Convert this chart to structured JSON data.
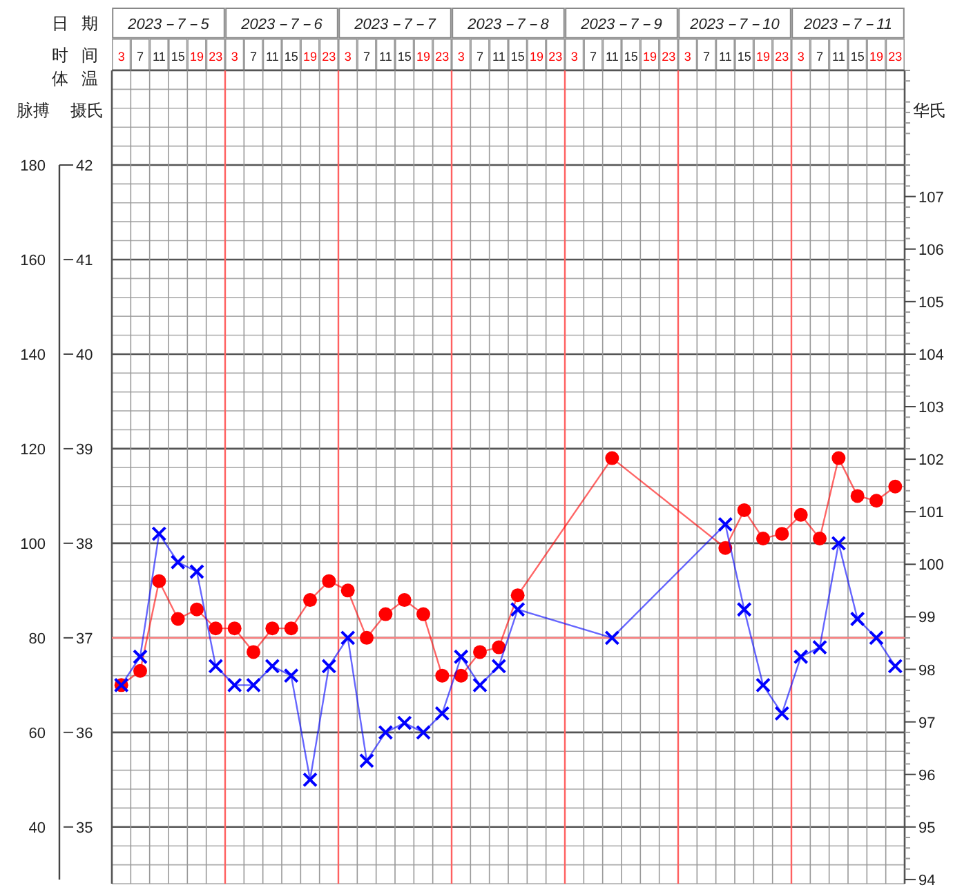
{
  "chart_data": {
    "type": "line",
    "categories": [
      "3",
      "7",
      "11",
      "15",
      "19",
      "23",
      "3",
      "7",
      "11",
      "15",
      "19",
      "23",
      "3",
      "7",
      "11",
      "15",
      "19",
      "23",
      "3",
      "7",
      "11",
      "15",
      "19",
      "23",
      "3",
      "7",
      "11",
      "15",
      "19",
      "23",
      "3",
      "7",
      "11",
      "15",
      "19",
      "23",
      "3",
      "7",
      "11",
      "15",
      "19",
      "23"
    ],
    "xlabel": "时 间",
    "ylabel": "摄氏",
    "y2label": "华氏",
    "y3label": "脉搏",
    "annotations": [
      "日 期",
      "2023－7－5",
      "2023－7－6",
      "2023－7－7",
      "2023－7－8",
      "2023－7－9",
      "2023－7－10",
      "2023－7－11",
      "体 温"
    ],
    "ylim": [
      34.4,
      43.0
    ],
    "yticks": [
      35,
      36,
      37,
      38,
      39,
      40,
      41,
      42
    ],
    "y2lim": [
      93.92,
      109.4
    ],
    "y2ticks": [
      94,
      95,
      96,
      97,
      98,
      99,
      100,
      101,
      102,
      103,
      104,
      105,
      106,
      107
    ],
    "y3lim": [
      28,
      200
    ],
    "y3ticks": [
      40,
      60,
      80,
      100,
      120,
      140,
      160,
      180
    ],
    "grid": true,
    "ref_lines": [
      {
        "axis": "y",
        "value": 37,
        "color": "#ff8080"
      }
    ],
    "series": [
      {
        "color": "#ff0000",
        "marker": "circle",
        "axis": "y3",
        "values": [
          70,
          73,
          92,
          84,
          86,
          82,
          82,
          77,
          82,
          82,
          88,
          92,
          90,
          80,
          85,
          88,
          85,
          72,
          72,
          77,
          78,
          89,
          null,
          null,
          null,
          null,
          118,
          null,
          null,
          null,
          null,
          null,
          99,
          107,
          101,
          102,
          106,
          101,
          118,
          110,
          109,
          112
        ]
      },
      {
        "color": "#0000ff",
        "marker": "cross",
        "axis": "y",
        "values": [
          36.5,
          36.8,
          38.1,
          37.8,
          37.7,
          36.7,
          36.5,
          36.5,
          36.7,
          36.6,
          35.5,
          36.7,
          37.0,
          35.7,
          36.0,
          36.1,
          36.0,
          36.2,
          36.8,
          36.5,
          36.7,
          37.3,
          null,
          null,
          null,
          null,
          37.0,
          null,
          null,
          null,
          null,
          null,
          38.2,
          37.3,
          36.5,
          36.2,
          36.8,
          36.9,
          38.0,
          37.2,
          37.0,
          36.7
        ]
      }
    ]
  }
}
